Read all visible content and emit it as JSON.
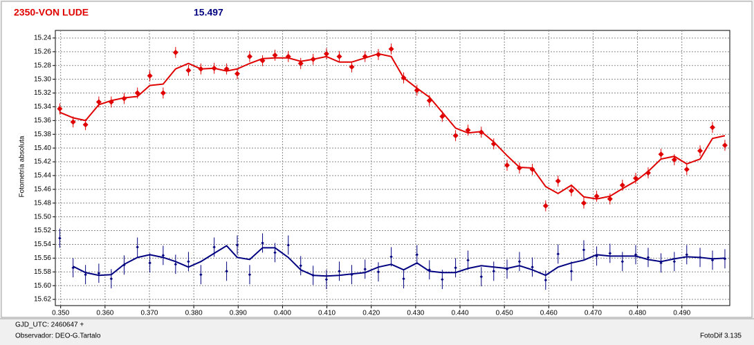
{
  "chart_data": {
    "type": "scatter",
    "title": "2350-VON LUDE",
    "subtitle": "15.497",
    "y_label": "Fotometría absoluta",
    "footer": {
      "gjd": "GJD_UTC: 2460647 +",
      "observer": "Observador: DEO-G.Tartalo",
      "software": "FotoDif 3.135"
    },
    "x": [
      0.3498,
      0.3528,
      0.3556,
      0.3586,
      0.3614,
      0.3643,
      0.3673,
      0.3701,
      0.3731,
      0.3759,
      0.3788,
      0.3816,
      0.3846,
      0.3874,
      0.3898,
      0.3926,
      0.3955,
      0.3983,
      0.4013,
      0.4041,
      0.4069,
      0.4099,
      0.4128,
      0.4156,
      0.4186,
      0.4216,
      0.4245,
      0.4273,
      0.4303,
      0.4331,
      0.436,
      0.439,
      0.4418,
      0.4448,
      0.4476,
      0.4506,
      0.4534,
      0.4563,
      0.4593,
      0.4621,
      0.4651,
      0.4679,
      0.4708,
      0.4738,
      0.4766,
      0.4796,
      0.4824,
      0.4853,
      0.4883,
      0.4911,
      0.4941,
      0.4969,
      0.4997
    ],
    "series": [
      {
        "kind": "points",
        "color": "#e00000",
        "error": 0.008,
        "values": [
          15.343,
          15.362,
          15.366,
          15.333,
          15.333,
          15.328,
          15.32,
          15.295,
          15.32,
          15.261,
          15.287,
          15.285,
          15.284,
          15.285,
          15.292,
          15.267,
          15.273,
          15.265,
          15.267,
          15.277,
          15.271,
          15.263,
          15.267,
          15.282,
          15.267,
          15.264,
          15.256,
          15.298,
          15.316,
          15.331,
          15.354,
          15.382,
          15.374,
          15.377,
          15.394,
          15.425,
          15.429,
          15.431,
          15.484,
          15.448,
          15.462,
          15.48,
          15.47,
          15.474,
          15.454,
          15.444,
          15.436,
          15.409,
          15.417,
          15.431,
          15.404,
          15.37,
          15.396
        ]
      },
      {
        "kind": "line",
        "color": "#e00000",
        "values": [
          15.348,
          15.356,
          15.36,
          15.337,
          15.331,
          15.327,
          15.325,
          15.309,
          15.307,
          15.285,
          15.277,
          15.285,
          15.284,
          15.288,
          15.285,
          15.277,
          15.27,
          15.269,
          15.269,
          15.274,
          15.271,
          15.267,
          15.275,
          15.275,
          15.269,
          15.263,
          15.267,
          15.298,
          15.313,
          15.326,
          15.348,
          15.371,
          15.378,
          15.376,
          15.391,
          15.411,
          15.428,
          15.429,
          15.456,
          15.466,
          15.454,
          15.471,
          15.474,
          15.47,
          15.459,
          15.448,
          15.434,
          15.416,
          15.412,
          15.423,
          15.416,
          15.386,
          15.382
        ]
      },
      {
        "kind": "points",
        "color": "#000080",
        "error": 0.014,
        "values": [
          15.531,
          15.574,
          15.584,
          15.582,
          15.59,
          15.57,
          15.544,
          15.567,
          15.556,
          15.569,
          15.565,
          15.584,
          15.544,
          15.579,
          15.541,
          15.584,
          15.538,
          15.552,
          15.541,
          15.571,
          15.585,
          15.591,
          15.579,
          15.584,
          15.576,
          15.58,
          15.558,
          15.59,
          15.555,
          15.577,
          15.591,
          15.574,
          15.563,
          15.587,
          15.579,
          15.576,
          15.565,
          15.573,
          15.592,
          15.554,
          15.579,
          15.548,
          15.557,
          15.553,
          15.565,
          15.555,
          15.559,
          15.567,
          15.565,
          15.555,
          15.559,
          15.563,
          15.561
        ]
      },
      {
        "kind": "line",
        "color": "#000080",
        "values": [
          null,
          15.572,
          15.581,
          15.585,
          15.584,
          15.569,
          15.559,
          15.555,
          15.559,
          15.565,
          15.573,
          15.565,
          15.553,
          15.542,
          15.559,
          15.562,
          15.545,
          15.545,
          15.559,
          15.577,
          15.585,
          15.586,
          15.585,
          15.583,
          15.581,
          15.573,
          15.569,
          15.577,
          15.567,
          15.579,
          15.581,
          15.581,
          15.575,
          15.571,
          15.573,
          15.575,
          15.571,
          15.577,
          15.585,
          15.573,
          15.567,
          15.563,
          15.555,
          15.557,
          15.557,
          15.557,
          15.562,
          15.565,
          15.561,
          15.558,
          15.559,
          15.561,
          15.56
        ]
      }
    ],
    "xlim": [
      0.3488,
      0.5008
    ],
    "ylim": [
      15.229,
      15.629
    ],
    "y_inverted": true,
    "xticks": [
      {
        "value": 0.35,
        "label": "0.350"
      },
      {
        "value": 0.36,
        "label": "0.360"
      },
      {
        "value": 0.37,
        "label": "0.370"
      },
      {
        "value": 0.38,
        "label": "0.380"
      },
      {
        "value": 0.39,
        "label": "0.390"
      },
      {
        "value": 0.4,
        "label": "0.400"
      },
      {
        "value": 0.41,
        "label": "0.410"
      },
      {
        "value": 0.42,
        "label": "0.420"
      },
      {
        "value": 0.43,
        "label": "0.430"
      },
      {
        "value": 0.44,
        "label": "0.440"
      },
      {
        "value": 0.45,
        "label": "0.450"
      },
      {
        "value": 0.46,
        "label": "0.460"
      },
      {
        "value": 0.47,
        "label": "0.470"
      },
      {
        "value": 0.48,
        "label": "0.480"
      },
      {
        "value": 0.49,
        "label": "0.490"
      }
    ],
    "yticks": [
      15.24,
      15.26,
      15.28,
      {
        "value": 15.3,
        "label": "15.30"
      },
      15.32,
      15.34,
      15.36,
      15.38,
      {
        "value": 15.4,
        "label": "15.40"
      },
      15.42,
      15.44,
      15.46,
      15.48,
      {
        "value": 15.5,
        "label": "15.50"
      },
      15.52,
      15.54,
      15.56,
      15.58,
      {
        "value": 15.6,
        "label": "15.60"
      },
      15.62
    ],
    "grid": true
  }
}
